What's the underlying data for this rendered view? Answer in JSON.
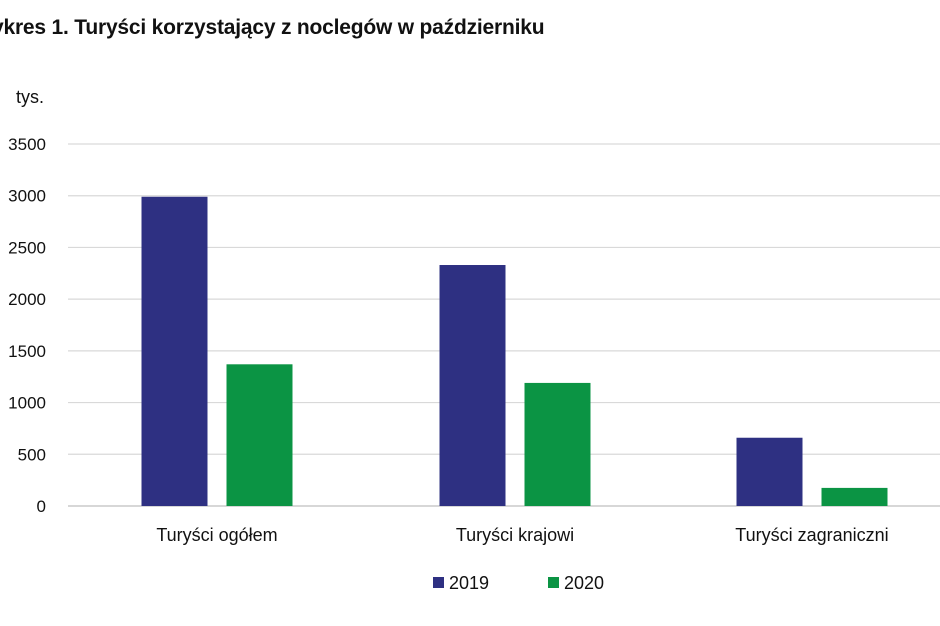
{
  "title": "ykres 1. Turyści korzystający z noclegów w październiku",
  "chart_data": {
    "type": "bar",
    "title": "ykres 1. Turyści korzystający z noclegów w październiku",
    "ylabel": "tys.",
    "xlabel": "",
    "categories": [
      "Turyści ogółem",
      "Turyści krajowi",
      "Turyści zagraniczni"
    ],
    "series": [
      {
        "name": "2019",
        "color": "#2e3082",
        "values": [
          2990,
          2330,
          660
        ]
      },
      {
        "name": "2020",
        "color": "#0b9444",
        "values": [
          1370,
          1190,
          175
        ]
      }
    ],
    "ylim": [
      0,
      3500
    ],
    "yticks": [
      0,
      500,
      1000,
      1500,
      2000,
      2500,
      3000,
      3500
    ],
    "grid": true,
    "legend": "bottom-center"
  }
}
